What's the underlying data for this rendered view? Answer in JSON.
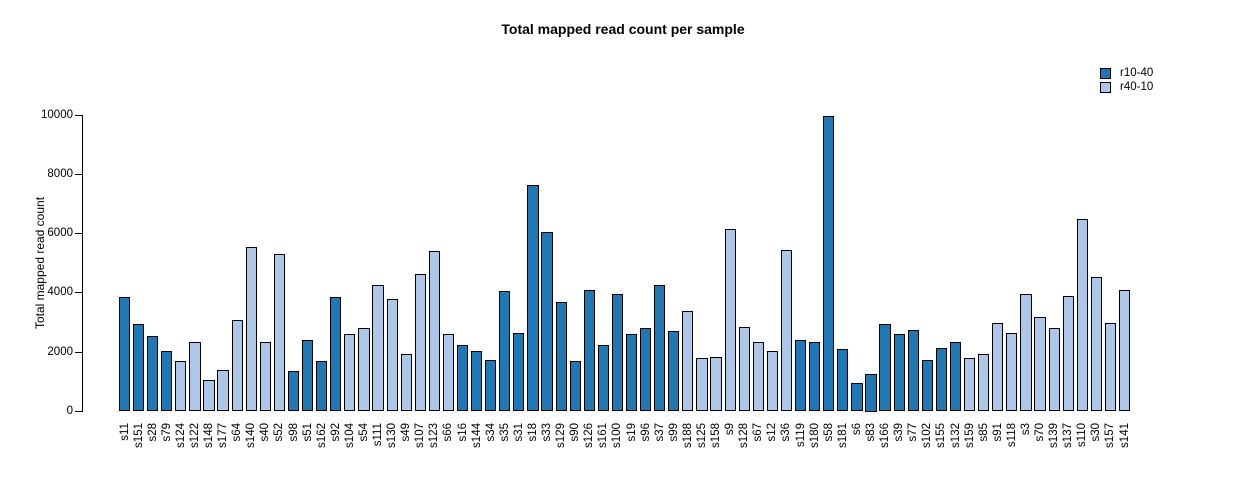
{
  "chart_data": {
    "type": "bar",
    "title": "Total mapped read count per sample",
    "ylabel": "Total mapped read count",
    "xlabel": "",
    "ylim": [
      0,
      10000
    ],
    "yticks": [
      0,
      2000,
      4000,
      6000,
      8000,
      10000
    ],
    "grid": false,
    "legend_position": "top-right",
    "bar_edge_color": "#000000",
    "series": [
      {
        "name": "r10-40",
        "color": "#1f77b4"
      },
      {
        "name": "r40-10",
        "color": "#aec7e8"
      }
    ],
    "samples": [
      {
        "id": "s11",
        "group": "r10-40",
        "value": 3850
      },
      {
        "id": "s151",
        "group": "r10-40",
        "value": 2950
      },
      {
        "id": "s28",
        "group": "r10-40",
        "value": 2550
      },
      {
        "id": "s79",
        "group": "r10-40",
        "value": 2050
      },
      {
        "id": "s124",
        "group": "r40-10",
        "value": 1700
      },
      {
        "id": "s122",
        "group": "r40-10",
        "value": 2350
      },
      {
        "id": "s148",
        "group": "r40-10",
        "value": 1050
      },
      {
        "id": "s177",
        "group": "r40-10",
        "value": 1400
      },
      {
        "id": "s64",
        "group": "r40-10",
        "value": 3100
      },
      {
        "id": "s140",
        "group": "r40-10",
        "value": 5550
      },
      {
        "id": "s40",
        "group": "r40-10",
        "value": 2350
      },
      {
        "id": "s52",
        "group": "r40-10",
        "value": 5300
      },
      {
        "id": "s98",
        "group": "r10-40",
        "value": 1350
      },
      {
        "id": "s51",
        "group": "r10-40",
        "value": 2400
      },
      {
        "id": "s162",
        "group": "r10-40",
        "value": 1700
      },
      {
        "id": "s92",
        "group": "r10-40",
        "value": 3850
      },
      {
        "id": "s104",
        "group": "r40-10",
        "value": 2600
      },
      {
        "id": "s54",
        "group": "r40-10",
        "value": 2800
      },
      {
        "id": "s111",
        "group": "r40-10",
        "value": 4250
      },
      {
        "id": "s130",
        "group": "r40-10",
        "value": 3800
      },
      {
        "id": "s49",
        "group": "r40-10",
        "value": 1950
      },
      {
        "id": "s107",
        "group": "r40-10",
        "value": 4650
      },
      {
        "id": "s123",
        "group": "r40-10",
        "value": 5400
      },
      {
        "id": "s66",
        "group": "r40-10",
        "value": 2600
      },
      {
        "id": "s16",
        "group": "r10-40",
        "value": 2250
      },
      {
        "id": "s144",
        "group": "r10-40",
        "value": 2050
      },
      {
        "id": "s34",
        "group": "r10-40",
        "value": 1750
      },
      {
        "id": "s35",
        "group": "r10-40",
        "value": 4050
      },
      {
        "id": "s31",
        "group": "r10-40",
        "value": 2650
      },
      {
        "id": "s18",
        "group": "r10-40",
        "value": 7650
      },
      {
        "id": "s33",
        "group": "r10-40",
        "value": 6050
      },
      {
        "id": "s129",
        "group": "r10-40",
        "value": 3700
      },
      {
        "id": "s90",
        "group": "r10-40",
        "value": 1700
      },
      {
        "id": "s126",
        "group": "r10-40",
        "value": 4100
      },
      {
        "id": "s161",
        "group": "r10-40",
        "value": 2250
      },
      {
        "id": "s100",
        "group": "r10-40",
        "value": 3950
      },
      {
        "id": "s19",
        "group": "r10-40",
        "value": 2600
      },
      {
        "id": "s96",
        "group": "r10-40",
        "value": 2800
      },
      {
        "id": "s37",
        "group": "r10-40",
        "value": 4250
      },
      {
        "id": "s99",
        "group": "r10-40",
        "value": 2700
      },
      {
        "id": "s188",
        "group": "r40-10",
        "value": 3400
      },
      {
        "id": "s125",
        "group": "r40-10",
        "value": 1800
      },
      {
        "id": "s158",
        "group": "r40-10",
        "value": 1850
      },
      {
        "id": "s9",
        "group": "r40-10",
        "value": 6150
      },
      {
        "id": "s128",
        "group": "r40-10",
        "value": 2850
      },
      {
        "id": "s67",
        "group": "r40-10",
        "value": 2350
      },
      {
        "id": "s12",
        "group": "r40-10",
        "value": 2050
      },
      {
        "id": "s36",
        "group": "r40-10",
        "value": 5450
      },
      {
        "id": "s119",
        "group": "r10-40",
        "value": 2400
      },
      {
        "id": "s180",
        "group": "r10-40",
        "value": 2350
      },
      {
        "id": "s58",
        "group": "r10-40",
        "value": 9950
      },
      {
        "id": "s181",
        "group": "r10-40",
        "value": 2100
      },
      {
        "id": "s6",
        "group": "r10-40",
        "value": 950
      },
      {
        "id": "s83",
        "group": "r10-40",
        "value": 1250
      },
      {
        "id": "s166",
        "group": "r10-40",
        "value": 2950
      },
      {
        "id": "s39",
        "group": "r10-40",
        "value": 2600
      },
      {
        "id": "s77",
        "group": "r10-40",
        "value": 2750
      },
      {
        "id": "s102",
        "group": "r10-40",
        "value": 1750
      },
      {
        "id": "s155",
        "group": "r10-40",
        "value": 2150
      },
      {
        "id": "s132",
        "group": "r10-40",
        "value": 2350
      },
      {
        "id": "s159",
        "group": "r40-10",
        "value": 1800
      },
      {
        "id": "s85",
        "group": "r40-10",
        "value": 1950
      },
      {
        "id": "s91",
        "group": "r40-10",
        "value": 3000
      },
      {
        "id": "s118",
        "group": "r40-10",
        "value": 2650
      },
      {
        "id": "s3",
        "group": "r40-10",
        "value": 3950
      },
      {
        "id": "s70",
        "group": "r40-10",
        "value": 3200
      },
      {
        "id": "s139",
        "group": "r40-10",
        "value": 2800
      },
      {
        "id": "s137",
        "group": "r40-10",
        "value": 3900
      },
      {
        "id": "s110",
        "group": "r40-10",
        "value": 6500
      },
      {
        "id": "s30",
        "group": "r40-10",
        "value": 4550
      },
      {
        "id": "s157",
        "group": "r40-10",
        "value": 3000
      },
      {
        "id": "s141",
        "group": "r40-10",
        "value": 4100
      }
    ]
  }
}
